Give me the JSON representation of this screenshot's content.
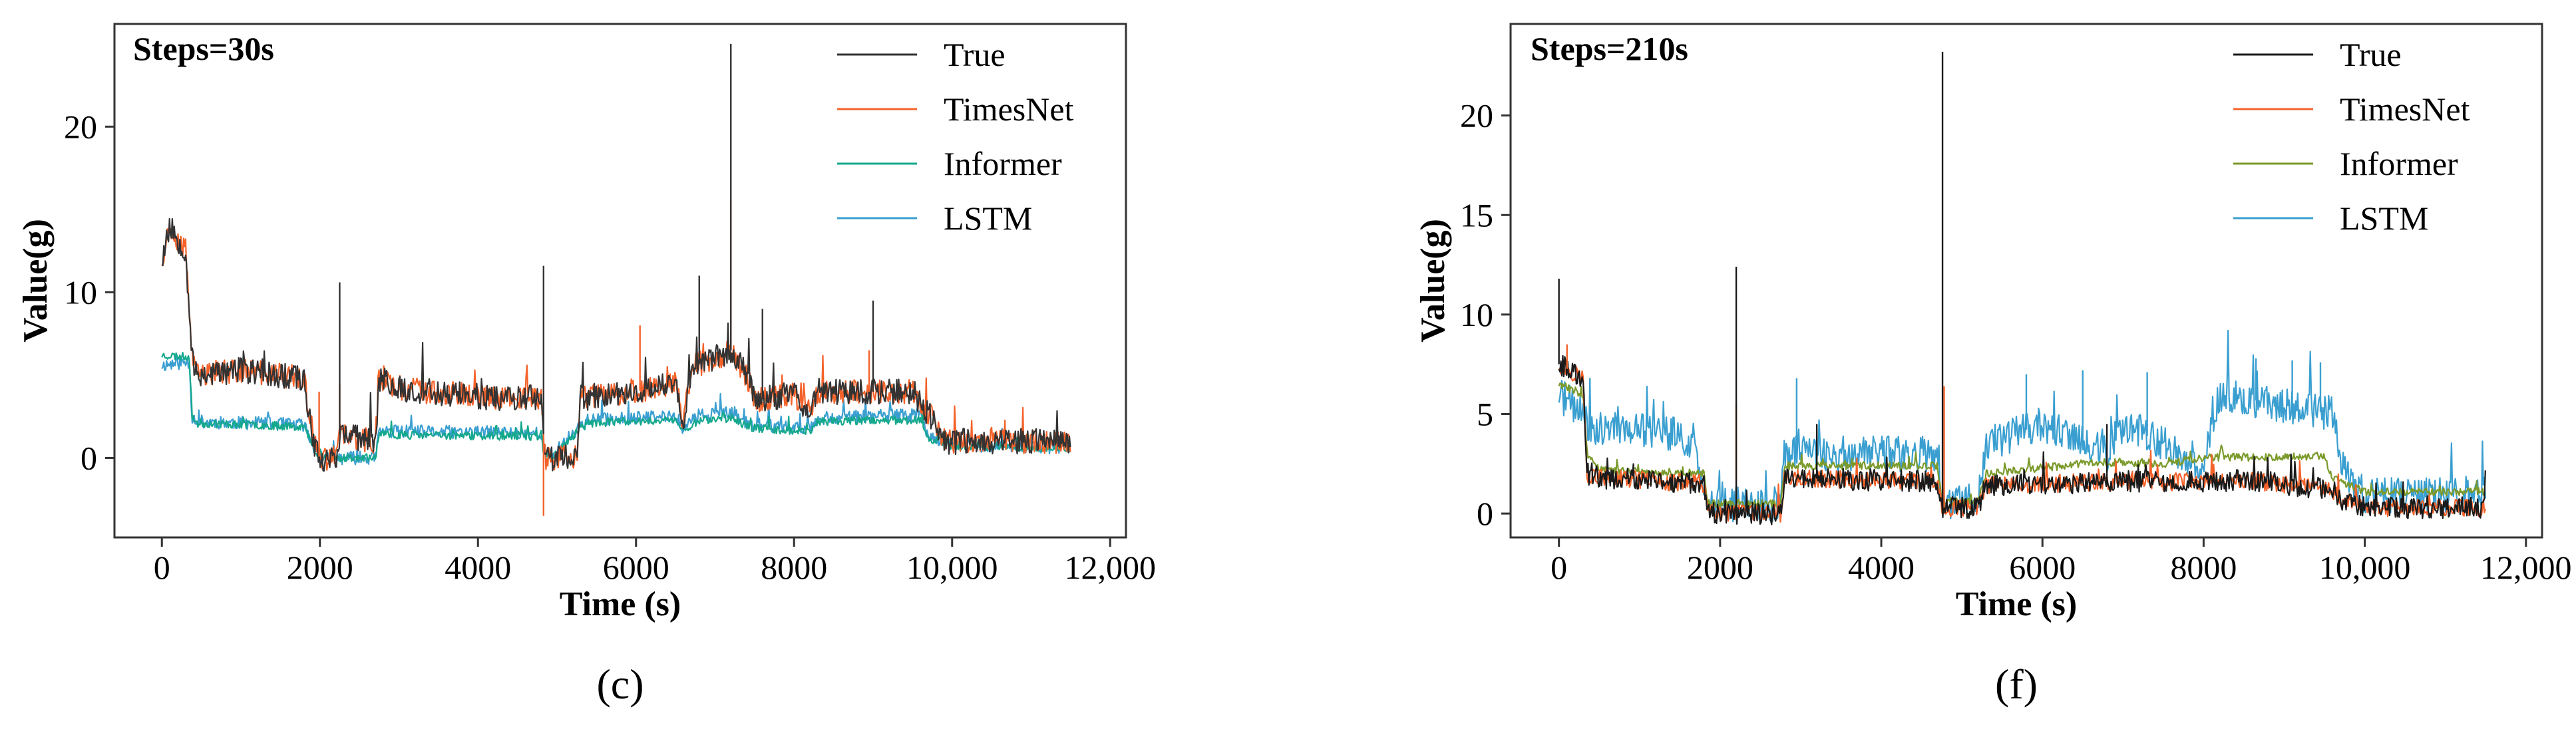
{
  "figure": {
    "panels": [
      {
        "caption": "(c)",
        "title": "Steps=30s"
      },
      {
        "caption": "(f)",
        "title": "Steps=210s"
      }
    ]
  },
  "chart_data": [
    {
      "type": "line",
      "title": "Steps=30s",
      "caption": "(c)",
      "xlabel": "Time (s)",
      "ylabel": "Value(g)",
      "xlim": [
        -600,
        12200
      ],
      "ylim": [
        -4.8,
        26.2
      ],
      "xticks": [
        0,
        2000,
        4000,
        6000,
        8000,
        10000,
        12000
      ],
      "xtick_labels": [
        "0",
        "2000",
        "4000",
        "6000",
        "8000",
        "10,000",
        "12,000"
      ],
      "yticks": [
        0,
        10,
        20
      ],
      "ytick_labels": [
        "0",
        "10",
        "20"
      ],
      "legend_position": "top-right",
      "series": [
        {
          "name": "LSTM",
          "color": "#3a9fd0",
          "noise": 0.4,
          "seed": 11,
          "x": [
            0,
            350,
            380,
            450,
            1800,
            1950,
            2050,
            2700,
            2750,
            4800,
            4840,
            4950,
            5300,
            5400,
            6500,
            6600,
            6800,
            7250,
            7350,
            7500,
            8200,
            8300,
            9600,
            9700,
            9900,
            10000,
            11500
          ],
          "y": [
            5.6,
            5.8,
            2.5,
            2.2,
            2.0,
            0.3,
            0.0,
            0.0,
            1.6,
            1.5,
            0.2,
            0.2,
            2.0,
            2.3,
            2.5,
            1.8,
            2.6,
            2.7,
            2.2,
            2.0,
            1.8,
            2.4,
            2.6,
            1.4,
            1.0,
            0.8,
            0.6
          ],
          "spikes": []
        },
        {
          "name": "Informer",
          "color": "#14a88c",
          "noise": 0.25,
          "seed": 23,
          "x": [
            0,
            350,
            380,
            450,
            1800,
            1950,
            2050,
            2700,
            2750,
            4800,
            4840,
            4950,
            5300,
            5400,
            6500,
            6600,
            6800,
            7250,
            7350,
            7500,
            8200,
            8300,
            9600,
            9700,
            9900,
            10000,
            11500
          ],
          "y": [
            6.2,
            6.1,
            2.4,
            2.1,
            1.9,
            0.3,
            0.0,
            0.0,
            1.4,
            1.3,
            0.1,
            0.1,
            1.8,
            2.1,
            2.3,
            1.6,
            2.3,
            2.4,
            2.0,
            1.8,
            1.6,
            2.2,
            2.3,
            1.2,
            0.9,
            0.7,
            0.6
          ],
          "spikes": []
        },
        {
          "name": "TimesNet",
          "color": "#f4622a",
          "noise": 0.75,
          "seed": 37,
          "x": [
            0,
            100,
            300,
            380,
            420,
            1000,
            1800,
            1850,
            1950,
            2000,
            2200,
            2250,
            2700,
            2750,
            3000,
            4000,
            4800,
            4850,
            5250,
            5300,
            6000,
            6500,
            6600,
            6700,
            7000,
            7200,
            7400,
            7500,
            8000,
            8200,
            8300,
            9000,
            9500,
            9800,
            9900,
            10200,
            11500
          ],
          "y": [
            12.0,
            14.0,
            12.5,
            6.5,
            5.0,
            5.3,
            4.8,
            3.0,
            0.4,
            0.0,
            0.0,
            1.4,
            1.0,
            4.8,
            4.2,
            3.7,
            3.6,
            0.0,
            0.0,
            3.6,
            4.0,
            4.5,
            2.0,
            5.5,
            6.0,
            6.5,
            5.0,
            3.5,
            3.8,
            2.8,
            4.0,
            4.0,
            4.0,
            2.0,
            1.0,
            1.0,
            1.0
          ],
          "spikes": [
            [
              7200,
              15.6
            ],
            [
              4830,
              -3.5
            ],
            [
              1990,
              4.0
            ],
            [
              2250,
              4.5
            ],
            [
              6050,
              8.0
            ],
            [
              8950,
              6.5
            ]
          ]
        },
        {
          "name": "True",
          "color": "#333333",
          "noise": 0.8,
          "seed": 53,
          "x": [
            0,
            100,
            300,
            380,
            420,
            1000,
            1800,
            1850,
            1950,
            2000,
            2200,
            2250,
            2700,
            2750,
            3000,
            4000,
            4800,
            4850,
            5250,
            5300,
            6000,
            6500,
            6600,
            6700,
            7000,
            7200,
            7400,
            7500,
            8000,
            8200,
            8300,
            9000,
            9500,
            9800,
            9900,
            10200,
            11500
          ],
          "y": [
            12.0,
            14.0,
            12.5,
            6.5,
            5.0,
            5.3,
            4.8,
            3.0,
            0.4,
            0.0,
            0.0,
            1.4,
            1.0,
            4.8,
            4.2,
            3.7,
            3.6,
            0.0,
            0.0,
            3.6,
            4.0,
            4.5,
            2.0,
            5.5,
            6.0,
            6.5,
            5.0,
            3.5,
            3.8,
            2.8,
            4.0,
            4.0,
            4.0,
            2.0,
            1.0,
            1.0,
            1.0
          ],
          "spikes": [
            [
              7200,
              25.0
            ],
            [
              2250,
              10.6
            ],
            [
              4830,
              11.6
            ],
            [
              6800,
              11.0
            ],
            [
              7600,
              9.0
            ],
            [
              9000,
              9.5
            ]
          ]
        }
      ]
    },
    {
      "type": "line",
      "title": "Steps=210s",
      "caption": "(f)",
      "xlabel": "Time (s)",
      "ylabel": "Value(g)",
      "xlim": [
        -600,
        12200
      ],
      "ylim": [
        -1.2,
        24.6
      ],
      "xticks": [
        0,
        2000,
        4000,
        6000,
        8000,
        10000,
        12000
      ],
      "xtick_labels": [
        "0",
        "2000",
        "4000",
        "6000",
        "8000",
        "10,000",
        "12,000"
      ],
      "yticks": [
        0,
        5,
        10,
        15,
        20
      ],
      "ytick_labels": [
        "0",
        "5",
        "10",
        "15",
        "20"
      ],
      "legend_position": "top-right",
      "series": [
        {
          "name": "LSTM",
          "color": "#3a9fd0",
          "noise": 0.9,
          "seed": 71,
          "x": [
            0,
            300,
            350,
            1500,
            1700,
            1800,
            2750,
            2800,
            4700,
            4750,
            4800,
            5200,
            5300,
            6000,
            6800,
            7000,
            8000,
            8200,
            9600,
            9700,
            10000,
            11500
          ],
          "y": [
            6.0,
            5.0,
            4.4,
            4.0,
            3.2,
            0.4,
            0.5,
            3.0,
            3.0,
            0.5,
            0.6,
            0.6,
            3.5,
            4.5,
            3.0,
            4.5,
            2.5,
            6.0,
            5.0,
            2.5,
            0.9,
            1.0
          ],
          "spikes": [
            [
              5800,
              7.0
            ],
            [
              6500,
              7.2
            ],
            [
              7300,
              7.1
            ],
            [
              8650,
              7.8
            ],
            [
              9100,
              7.7
            ],
            [
              9450,
              7.6
            ],
            [
              2950,
              6.8
            ]
          ]
        },
        {
          "name": "Informer",
          "color": "#7b9a2b",
          "noise": 0.2,
          "seed": 83,
          "x": [
            0,
            300,
            350,
            500,
            1800,
            1850,
            2750,
            2800,
            4700,
            4750,
            4800,
            5200,
            5300,
            6000,
            6500,
            7000,
            7500,
            8000,
            9500,
            9600,
            10000,
            11500
          ],
          "y": [
            6.5,
            6.0,
            3.0,
            2.2,
            2.0,
            0.5,
            0.5,
            2.4,
            2.4,
            0.6,
            0.6,
            0.6,
            2.0,
            2.3,
            2.5,
            2.6,
            2.5,
            2.8,
            2.9,
            1.8,
            1.1,
            1.1
          ],
          "spikes": []
        },
        {
          "name": "TimesNet",
          "color": "#f4622a",
          "noise": 0.45,
          "seed": 97,
          "x": [
            0,
            300,
            350,
            500,
            1800,
            1850,
            2750,
            2800,
            4700,
            4750,
            4800,
            5200,
            5300,
            6000,
            7000,
            8000,
            8500,
            9600,
            9700,
            10000,
            11500
          ],
          "y": [
            7.5,
            6.8,
            2.0,
            1.8,
            1.5,
            0.0,
            0.0,
            1.8,
            1.6,
            0.3,
            0.3,
            0.3,
            1.4,
            1.5,
            1.6,
            1.6,
            1.7,
            1.2,
            0.7,
            0.3,
            0.3
          ],
          "spikes": [
            [
              2200,
              5.6
            ],
            [
              4780,
              6.4
            ],
            [
              100,
              8.5
            ]
          ]
        },
        {
          "name": "True",
          "color": "#1a1a1a",
          "noise": 0.55,
          "seed": 113,
          "x": [
            0,
            300,
            350,
            500,
            1800,
            1850,
            2750,
            2800,
            4700,
            4750,
            4800,
            5200,
            5300,
            6000,
            7000,
            8000,
            8500,
            9600,
            9700,
            10000,
            11500
          ],
          "y": [
            7.5,
            6.8,
            2.0,
            1.8,
            1.5,
            0.0,
            0.0,
            1.8,
            1.6,
            0.3,
            0.3,
            0.3,
            1.4,
            1.5,
            1.6,
            1.6,
            1.7,
            1.2,
            0.7,
            0.3,
            0.3
          ],
          "spikes": [
            [
              4760,
              23.2
            ],
            [
              2200,
              12.4
            ],
            [
              0,
              11.8
            ],
            [
              6800,
              4.5
            ],
            [
              3200,
              4.5
            ]
          ]
        }
      ]
    }
  ]
}
